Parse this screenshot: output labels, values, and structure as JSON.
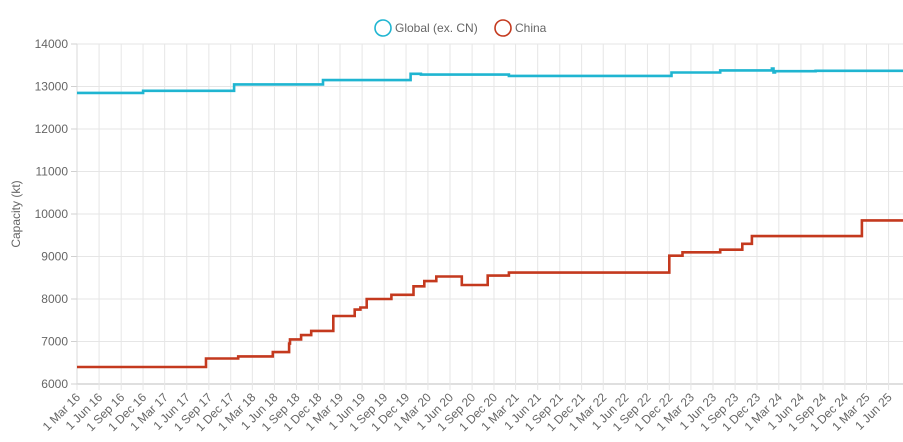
{
  "chart_data": {
    "type": "line",
    "title": "",
    "xlabel": "",
    "ylabel": "Capacity (kt)",
    "ylim": [
      6000,
      14000
    ],
    "y_ticks": [
      6000,
      7000,
      8000,
      9000,
      10000,
      11000,
      12000,
      13000,
      14000
    ],
    "x_range": [
      "2016-03-01",
      "2025-07-31"
    ],
    "x_tick_labels": [
      "1 Mar 16",
      "1 Jun 16",
      "1 Sep 16",
      "1 Dec 16",
      "1 Mar 17",
      "1 Jun 17",
      "1 Sep 17",
      "1 Dec 17",
      "1 Mar 18",
      "1 Jun 18",
      "1 Sep 18",
      "1 Dec 18",
      "1 Mar 19",
      "1 Jun 19",
      "1 Sep 19",
      "1 Dec 19",
      "1 Mar 20",
      "1 Jun 20",
      "1 Sep 20",
      "1 Dec 20",
      "1 Mar 21",
      "1 Jun 21",
      "1 Sep 21",
      "1 Dec 21",
      "1 Mar 22",
      "1 Jun 22",
      "1 Sep 22",
      "1 Dec 22",
      "1 Mar 23",
      "1 Jun 23",
      "1 Sep 23",
      "1 Dec 23",
      "1 Mar 24",
      "1 Jun 24",
      "1 Sep 24",
      "1 Dec 24",
      "1 Mar 25",
      "1 Jun 25"
    ],
    "grid": true,
    "legend_position": "top-center",
    "step": true,
    "series": [
      {
        "name": "Global (ex. CN)",
        "color": "#1fb5d1",
        "points": [
          [
            "2016-03-01",
            12850
          ],
          [
            "2016-12-01",
            12900
          ],
          [
            "2017-12-15",
            13050
          ],
          [
            "2018-12-20",
            13150
          ],
          [
            "2019-12-20",
            13300
          ],
          [
            "2020-02-01",
            13280
          ],
          [
            "2021-02-01",
            13250
          ],
          [
            "2022-12-10",
            13330
          ],
          [
            "2023-07-01",
            13380
          ],
          [
            "2024-02-01",
            13420
          ],
          [
            "2024-02-08",
            13330
          ],
          [
            "2024-02-14",
            13360
          ],
          [
            "2024-08-01",
            13370
          ],
          [
            "2025-07-31",
            13370
          ]
        ]
      },
      {
        "name": "China",
        "color": "#c4391e",
        "points": [
          [
            "2016-03-01",
            6400
          ],
          [
            "2017-08-20",
            6600
          ],
          [
            "2018-01-01",
            6650
          ],
          [
            "2018-05-25",
            6750
          ],
          [
            "2018-08-01",
            6950
          ],
          [
            "2018-08-05",
            7050
          ],
          [
            "2018-09-20",
            7150
          ],
          [
            "2018-11-01",
            7250
          ],
          [
            "2019-02-01",
            7600
          ],
          [
            "2019-05-01",
            7750
          ],
          [
            "2019-05-25",
            7800
          ],
          [
            "2019-06-20",
            8000
          ],
          [
            "2019-10-01",
            8100
          ],
          [
            "2020-01-01",
            8300
          ],
          [
            "2020-02-15",
            8420
          ],
          [
            "2020-04-05",
            8530
          ],
          [
            "2020-07-20",
            8330
          ],
          [
            "2020-11-05",
            8550
          ],
          [
            "2021-02-01",
            8620
          ],
          [
            "2022-12-01",
            9020
          ],
          [
            "2023-01-25",
            9100
          ],
          [
            "2023-07-01",
            9160
          ],
          [
            "2023-10-01",
            9300
          ],
          [
            "2023-11-10",
            9480
          ],
          [
            "2025-02-10",
            9850
          ],
          [
            "2025-07-31",
            9850
          ]
        ]
      }
    ]
  }
}
